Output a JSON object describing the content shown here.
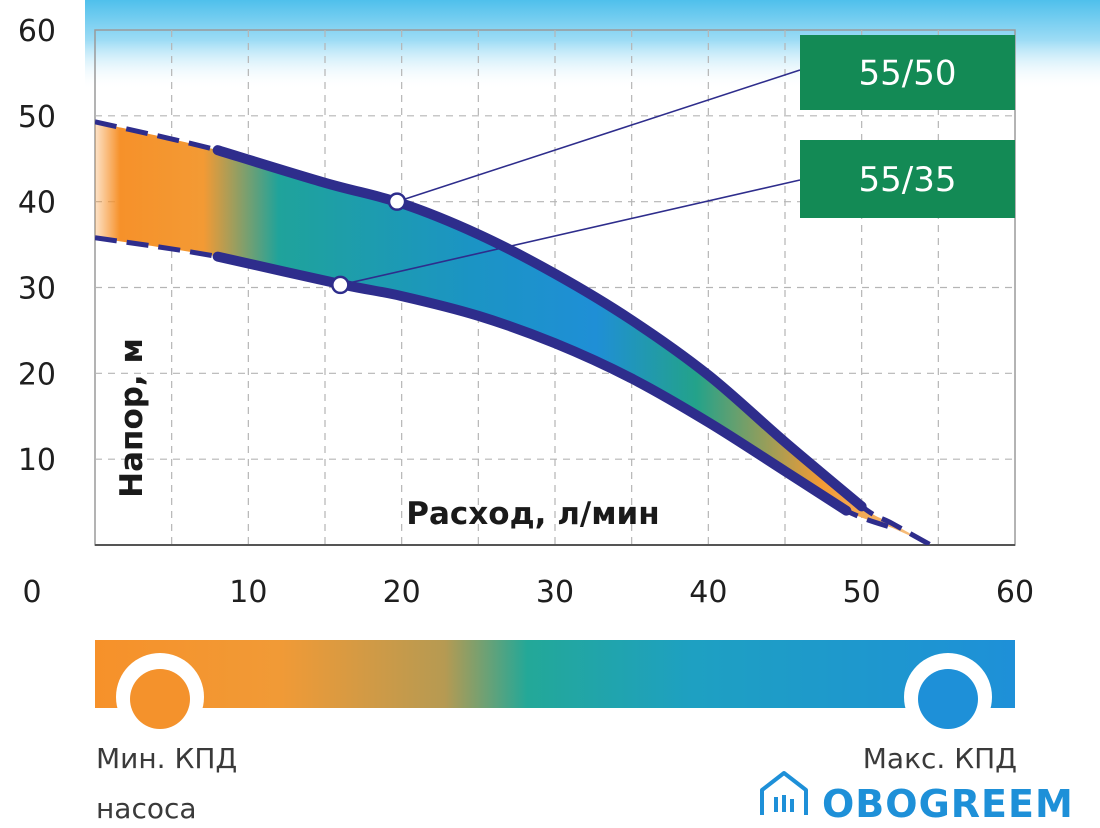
{
  "chart_data": {
    "type": "area",
    "xlabel": "Расход, л/мин",
    "ylabel": "Напор, м",
    "xlim": [
      0,
      60
    ],
    "ylim": [
      0,
      60
    ],
    "x_ticks": [
      "0",
      "10",
      "20",
      "30",
      "40",
      "50",
      "60"
    ],
    "y_ticks": [
      "10",
      "20",
      "30",
      "40",
      "50",
      "60"
    ],
    "grid": true,
    "series": [
      {
        "name": "55/50",
        "x": [
          0,
          8,
          15,
          20,
          25,
          30,
          35,
          40,
          45,
          50,
          52,
          54.5
        ],
        "y": [
          49.3,
          46,
          42.2,
          39.8,
          36.2,
          31.6,
          26.2,
          19.8,
          12,
          4.5,
          2.5,
          0
        ]
      },
      {
        "name": "55/35",
        "x": [
          0,
          8,
          16,
          20,
          25,
          30,
          35,
          40,
          45,
          49,
          52
        ],
        "y": [
          35.8,
          33.6,
          30.4,
          29,
          26.7,
          23.5,
          19.4,
          14.3,
          8.6,
          4,
          2
        ]
      }
    ],
    "markers": [
      {
        "series": "55/50",
        "x": 19.7,
        "y": 40
      },
      {
        "series": "55/35",
        "x": 16,
        "y": 30.3
      }
    ],
    "legend": {
      "min_label_1": "Мин. КПД",
      "min_label_2": "насоса",
      "max_label": "Макс. КПД",
      "min_color": "#f4922c",
      "max_color": "#1e90d8"
    }
  },
  "colors": {
    "curve": "#2e2d8c",
    "label_bg": "#138a55",
    "top_band": "#54c2ec",
    "grid": "#b5b5b5"
  },
  "logo": {
    "text": "OBOGREEM",
    "icon": "house-icon"
  }
}
